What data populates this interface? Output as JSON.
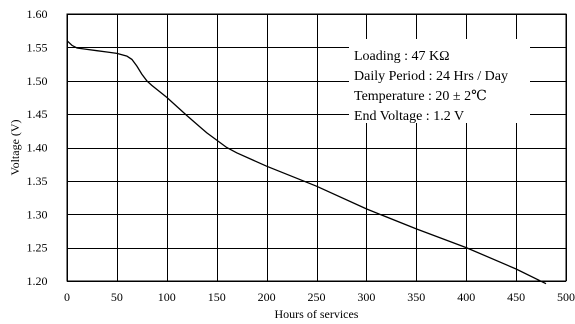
{
  "chart_data": {
    "type": "line",
    "xlabel": "Hours of services",
    "ylabel": "Voltage (V)",
    "xlim": [
      0,
      500
    ],
    "ylim": [
      1.2,
      1.6
    ],
    "x_ticks": [
      "0",
      "50",
      "100",
      "150",
      "200",
      "250",
      "300",
      "350",
      "400",
      "450",
      "500"
    ],
    "y_ticks": [
      "1.60",
      "1.55",
      "1.50",
      "1.45",
      "1.40",
      "1.35",
      "1.30",
      "1.25",
      "1.20"
    ],
    "grid": true,
    "annotations": [
      "Loading : 47 KΩ",
      "Daily Period : 24 Hrs / Day",
      "Temperature : 20  ±  2℃",
      "End Voltage :  1.2 V"
    ],
    "series": [
      {
        "x": [
          0,
          5,
          10,
          20,
          30,
          40,
          50,
          60,
          65,
          70,
          75,
          80,
          85,
          90,
          100,
          120,
          140,
          160,
          170,
          200,
          250,
          300,
          350,
          400,
          450,
          480
        ],
        "y": [
          1.56,
          1.553,
          1.549,
          1.547,
          1.545,
          1.543,
          1.541,
          1.537,
          1.532,
          1.522,
          1.51,
          1.5,
          1.493,
          1.487,
          1.475,
          1.448,
          1.422,
          1.4,
          1.392,
          1.372,
          1.342,
          1.308,
          1.278,
          1.25,
          1.218,
          1.196
        ]
      }
    ]
  }
}
